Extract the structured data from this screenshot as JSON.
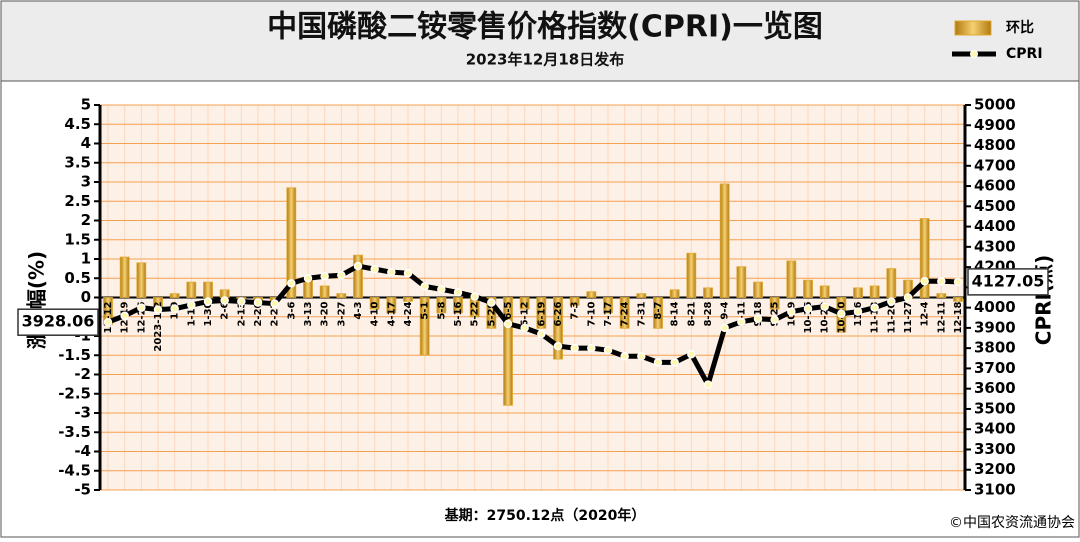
{
  "chart_data": {
    "type": "bar_line",
    "title": "中国磷酸二铵零售价格指数(CPRI)一览图",
    "subtitle": "2023年12月18日发布",
    "y_label": "涨跌幅(%)",
    "y2_label": "CPRI(点)",
    "footnote": "基期：2750.12点（2020年）",
    "source": "©中国农资流通协会",
    "categories": [
      "12-12",
      "12-19",
      "12-26",
      "2023-1-2",
      "1-9",
      "1-16",
      "1-30",
      "2-6",
      "2-13",
      "2-20",
      "2-27",
      "3-6",
      "3-13",
      "3-20",
      "3-27",
      "4-3",
      "4-10",
      "4-17",
      "4-24",
      "5-1",
      "5-8",
      "5-16",
      "5-22",
      "5-29",
      "6-5",
      "6-12",
      "6-19",
      "6-26",
      "7-3",
      "7-10",
      "7-17",
      "7-24",
      "7-31",
      "8-7",
      "8-14",
      "8-21",
      "8-28",
      "9-4",
      "9-11",
      "9-18",
      "9-25",
      "10-9",
      "10-16",
      "10-23",
      "10-30",
      "11-6",
      "11-13",
      "11-20",
      "11-27",
      "12-4",
      "12-11",
      "12-18"
    ],
    "series": [
      {
        "name": "环比",
        "type": "bar",
        "color": "#e0a830",
        "values": [
          -0.7,
          1.05,
          0.9,
          -0.3,
          0.1,
          0.4,
          0.4,
          0.2,
          -0.1,
          -0.1,
          -0.1,
          2.85,
          0.5,
          0.3,
          0.1,
          1.1,
          -0.3,
          -0.4,
          -0.1,
          -1.5,
          -0.4,
          -0.4,
          -0.5,
          -0.8,
          -2.8,
          -0.3,
          -0.8,
          -1.6,
          -0.2,
          0.15,
          -0.4,
          -0.8,
          0.1,
          -0.8,
          0.2,
          1.15,
          0.25,
          2.95,
          0.8,
          0.4,
          -0.3,
          0.95,
          0.45,
          0.3,
          -0.9,
          0.25,
          0.3,
          0.75,
          0.45,
          2.05,
          0.1,
          -0.1
        ]
      },
      {
        "name": "CPRI",
        "type": "line",
        "axis": "y2",
        "color": "#000000",
        "values": [
          3928.06,
          3960,
          4000,
          3990,
          3995,
          4013,
          4030,
          4035,
          4030,
          4025,
          4020,
          4120,
          4145,
          4155,
          4160,
          4205,
          4190,
          4175,
          4170,
          4105,
          4090,
          4075,
          4055,
          4025,
          3920,
          3900,
          3870,
          3810,
          3800,
          3800,
          3790,
          3760,
          3760,
          3730,
          3730,
          3770,
          3620,
          3900,
          3930,
          3945,
          3940,
          3980,
          3995,
          4005,
          3970,
          3980,
          4000,
          4030,
          4050,
          4130,
          4130,
          4127.05
        ],
        "value_labels": [
          "3928.06",
          null,
          null,
          null,
          null,
          null,
          null,
          null,
          null,
          null,
          null,
          null,
          null,
          null,
          null,
          null,
          null,
          null,
          null,
          null,
          null,
          null,
          null,
          null,
          null,
          null,
          null,
          null,
          null,
          null,
          null,
          null,
          null,
          null,
          null,
          null,
          null,
          null,
          null,
          null,
          null,
          null,
          null,
          null,
          null,
          null,
          null,
          null,
          null,
          null,
          null,
          "4127.05"
        ]
      }
    ],
    "ylim": [
      -5,
      5
    ],
    "yticks": [
      -5,
      -4.5,
      -4,
      -3.5,
      -3,
      -2.5,
      -2,
      -1.5,
      -1,
      -0.5,
      0,
      0.5,
      1,
      1.5,
      2,
      2.5,
      3,
      3.5,
      4,
      4.5,
      5
    ],
    "y2lim": [
      3100,
      5000
    ],
    "y2ticks": [
      3100,
      3200,
      3300,
      3400,
      3500,
      3600,
      3700,
      3800,
      3900,
      4000,
      4100,
      4200,
      4300,
      4400,
      4500,
      4600,
      4700,
      4800,
      4900,
      5000
    ],
    "grid": true
  }
}
